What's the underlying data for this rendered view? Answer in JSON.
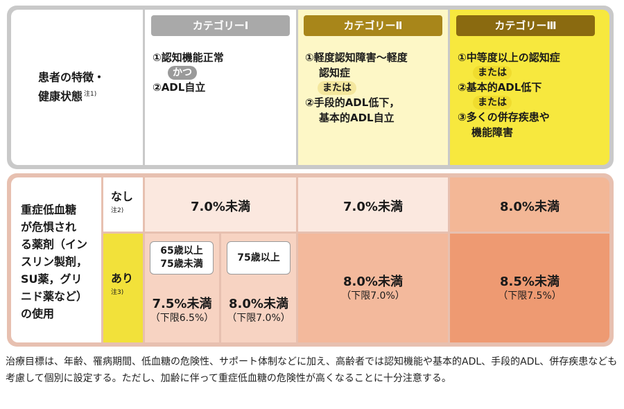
{
  "top": {
    "row_label": "患者の特徴・",
    "row_label2": "健康状態",
    "row_label_note": "注1)",
    "categories": [
      {
        "name": "カテゴリーⅠ",
        "items": [
          "①認知機能正常",
          "かつ",
          "②ADL自立"
        ]
      },
      {
        "name": "カテゴリーⅡ",
        "items": [
          "①軽度認知障害〜軽度",
          "認知症",
          "または",
          "②手段的ADL低下，",
          "基本的ADL自立"
        ]
      },
      {
        "name": "カテゴリーⅢ",
        "items": [
          "①中等度以上の認知症",
          "または",
          "②基本的ADL低下",
          "または",
          "③多くの併存疾患や",
          "機能障害"
        ]
      }
    ]
  },
  "bottom": {
    "left_label": [
      "重症低血糖",
      "が危惧され",
      "る薬剤（イン",
      "スリン製剤，",
      "SU薬，グリ",
      "ニド薬など）",
      "の使用"
    ],
    "nashi": {
      "label": "なし",
      "note": "注2)"
    },
    "ari": {
      "label": "あり",
      "note": "注3)"
    },
    "rows": {
      "nashi": {
        "cat1": "7.0%未満",
        "cat2": "7.0%未満",
        "cat3": "8.0%未満"
      },
      "ari": {
        "cat1a": {
          "age1": "65歳以上",
          "age2": "75歳未満",
          "value": "7.5%未満",
          "limit": "（下限6.5%）"
        },
        "cat1b": {
          "age": "75歳以上",
          "value": "8.0%未満",
          "limit": "（下限7.0%）"
        },
        "cat2": {
          "value": "8.0%未満",
          "limit": "（下限7.0%）"
        },
        "cat3": {
          "value": "8.5%未満",
          "limit": "（下限7.5%）"
        }
      }
    }
  },
  "note": "治療目標は、年齢、罹病期間、低血糖の危険性、サポート体制などに加え、高齢者では認知機能や基本的ADL、手段的ADL、併存疾患なども考慮して個別に設定する。ただし、加齢に伴って重症低血糖の危険性が高くなることに十分注意する。",
  "colors": {
    "cat1": "#a9a9a9",
    "cat2": "#a8861a",
    "cat3": "#8a6a10",
    "ari_label": "#f2e13a"
  }
}
